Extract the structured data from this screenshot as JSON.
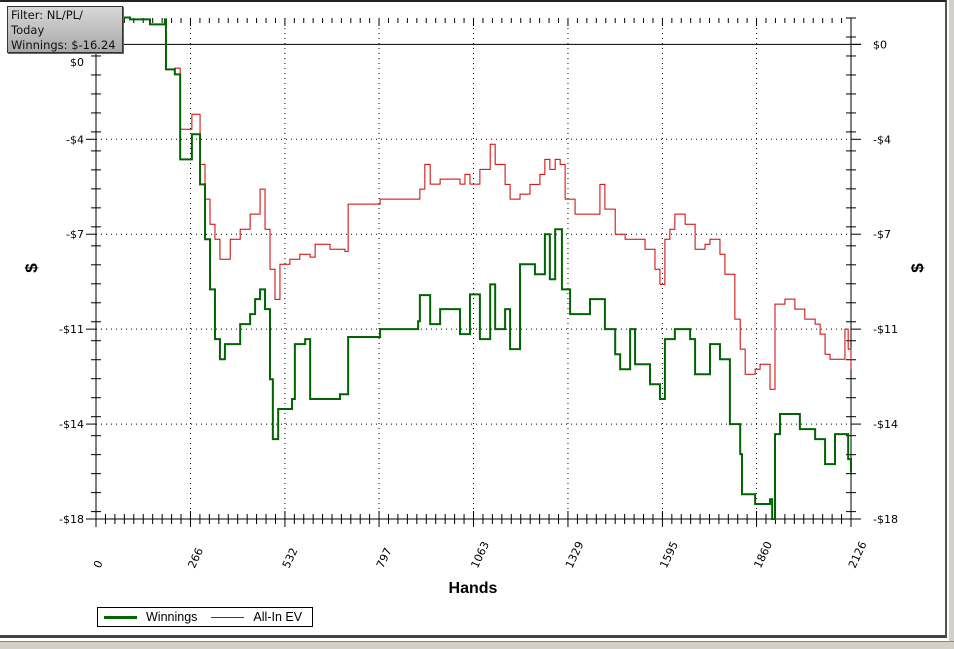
{
  "filter_box": {
    "line1": "Filter: NL/PL/",
    "line2": "Today",
    "line3": "Winnings: $-16.24"
  },
  "chart_data": {
    "type": "line",
    "title": "",
    "xlabel": "Hands",
    "ylabel": "$",
    "xlim": [
      0,
      2126
    ],
    "ylim": [
      -18,
      1.0
    ],
    "x_ticks": [
      0,
      266,
      532,
      797,
      1063,
      1329,
      1595,
      1860,
      2126
    ],
    "x_tick_labels": [
      "0",
      "266",
      "532",
      "797",
      "1063",
      "1329",
      "1595",
      "1860",
      "2126"
    ],
    "y_ticks": [
      0,
      -3.6,
      -7.2,
      -10.8,
      -14.4,
      -18
    ],
    "y_tick_labels": [
      "$0",
      "-$4",
      "-$7",
      "-$11",
      "-$14",
      "-$18"
    ],
    "grid": "dotted at major ticks",
    "legend_placement": "bottom-left",
    "series": [
      {
        "name": "Winnings",
        "color": "#006400",
        "x": [
          0,
          96,
          152,
          194,
          197,
          222,
          237,
          270,
          293,
          307,
          321,
          335,
          349,
          363,
          406,
          434,
          448,
          462,
          476,
          490,
          498,
          513,
          552,
          560,
          589,
          603,
          687,
          710,
          800,
          907,
          912,
          941,
          969,
          1025,
          1053,
          1081,
          1110,
          1124,
          1152,
          1166,
          1194,
          1236,
          1264,
          1278,
          1293,
          1312,
          1335,
          1391,
          1433,
          1462,
          1476,
          1504,
          1518,
          1560,
          1588,
          1602,
          1630,
          1673,
          1687,
          1729,
          1757,
          1785,
          1814,
          1819,
          1856,
          1898,
          1904,
          1912,
          1926,
          1982,
          2025,
          2053,
          2081,
          2109,
          2118,
          2126
        ],
        "y": [
          1.02,
          0.95,
          0.76,
          0.95,
          -0.95,
          -1.14,
          -4.36,
          -3.41,
          -5.31,
          -7.39,
          -9.29,
          -11.18,
          -11.94,
          -11.37,
          -10.61,
          -10.23,
          -9.66,
          -9.29,
          -10.04,
          -12.7,
          -14.97,
          -13.83,
          -13.45,
          -11.37,
          -11.18,
          -13.45,
          -13.27,
          -11.1,
          -10.8,
          -10.5,
          -9.51,
          -10.61,
          -10.04,
          -10.99,
          -9.48,
          -11.18,
          -9.1,
          -10.8,
          -10.04,
          -11.56,
          -8.34,
          -8.72,
          -7.2,
          -8.91,
          -7.01,
          -9.29,
          -10.23,
          -9.66,
          -10.8,
          -11.75,
          -12.32,
          -10.8,
          -12.13,
          -12.89,
          -13.45,
          -11.18,
          -10.8,
          -11.18,
          -12.51,
          -11.37,
          -11.94,
          -14.4,
          -15.54,
          -17.06,
          -17.43,
          -17.25,
          -18.0,
          -14.78,
          -14.02,
          -14.59,
          -14.97,
          -15.92,
          -14.78,
          -14.78,
          -15.73,
          -16.24
        ]
      },
      {
        "name": "All-In EV",
        "color": "#cc0000",
        "x": [
          0,
          96,
          152,
          194,
          197,
          222,
          237,
          270,
          293,
          307,
          321,
          335,
          349,
          378,
          406,
          434,
          462,
          476,
          490,
          504,
          518,
          546,
          574,
          603,
          617,
          659,
          701,
          710,
          800,
          912,
          926,
          941,
          969,
          1025,
          1039,
          1053,
          1081,
          1110,
          1124,
          1152,
          1166,
          1194,
          1222,
          1250,
          1264,
          1278,
          1293,
          1307,
          1321,
          1349,
          1391,
          1419,
          1433,
          1462,
          1490,
          1518,
          1546,
          1574,
          1588,
          1602,
          1616,
          1630,
          1659,
          1673,
          1687,
          1715,
          1729,
          1757,
          1771,
          1799,
          1814,
          1828,
          1856,
          1870,
          1898,
          1912,
          1940,
          1968,
          1996,
          2025,
          2039,
          2053,
          2067,
          2095,
          2109,
          2118,
          2126
        ],
        "y": [
          1.02,
          0.95,
          0.76,
          0.95,
          -0.95,
          -0.9,
          -3.22,
          -2.65,
          -4.55,
          -5.87,
          -6.82,
          -7.39,
          -8.15,
          -7.39,
          -7.01,
          -6.44,
          -5.49,
          -7.01,
          -8.53,
          -9.67,
          -8.34,
          -8.15,
          -7.96,
          -8.07,
          -7.58,
          -7.77,
          -7.85,
          -6.06,
          -5.87,
          -5.49,
          -4.55,
          -5.3,
          -5.11,
          -5.3,
          -4.93,
          -5.3,
          -4.74,
          -3.79,
          -4.55,
          -5.31,
          -5.87,
          -5.68,
          -5.31,
          -4.93,
          -4.36,
          -4.74,
          -4.36,
          -4.55,
          -5.87,
          -6.44,
          -6.44,
          -5.31,
          -6.25,
          -7.2,
          -7.39,
          -7.39,
          -7.77,
          -8.53,
          -9.1,
          -7.39,
          -7.01,
          -6.44,
          -6.82,
          -6.82,
          -7.77,
          -7.58,
          -7.39,
          -7.96,
          -8.72,
          -10.42,
          -11.56,
          -12.51,
          -12.32,
          -12.13,
          -13.08,
          -9.85,
          -9.66,
          -10.04,
          -10.42,
          -10.61,
          -10.99,
          -11.75,
          -11.94,
          -11.94,
          -10.8,
          -11.56,
          -12.32
        ]
      }
    ]
  }
}
